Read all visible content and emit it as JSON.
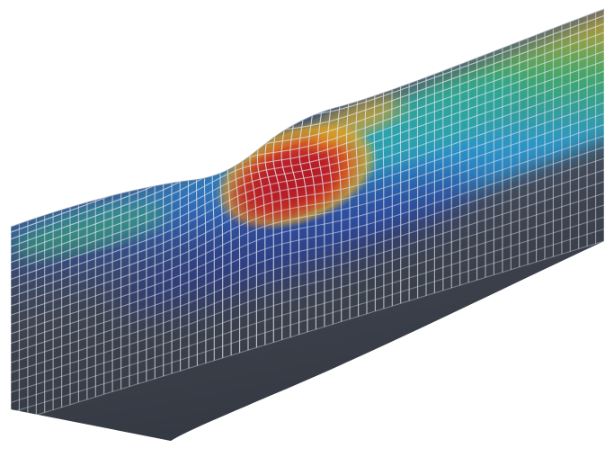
{
  "image": {
    "subject": "dented-pipe-mesh-render",
    "background_color": "#ffffff",
    "pipe_base_color": "#4a5060",
    "mesh_line_color": "#dfe5ef",
    "colormap": [
      "#26307a",
      "#2f63b8",
      "#2a9fd6",
      "#3db06a",
      "#e5a21d",
      "#e05a1a",
      "#b51f25"
    ]
  }
}
